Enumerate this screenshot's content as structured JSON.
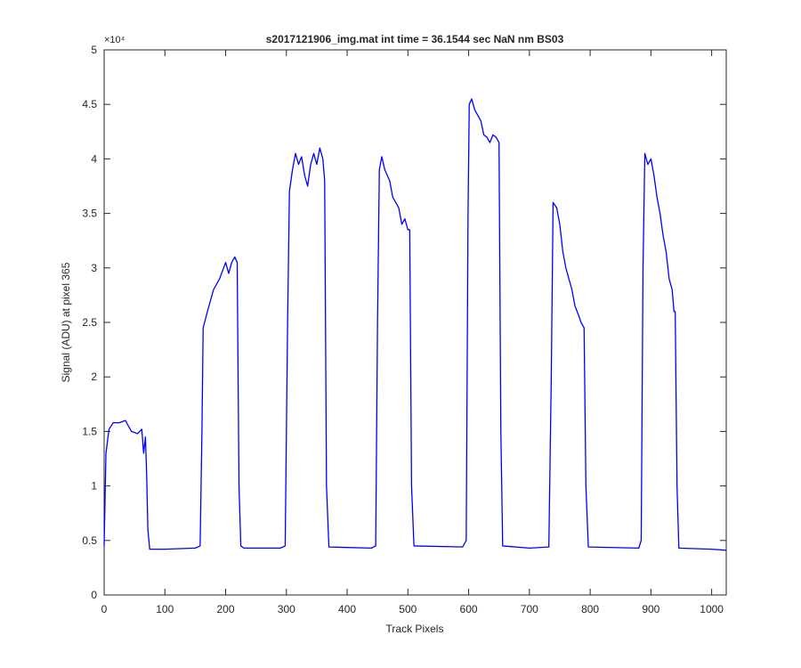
{
  "chart_data": {
    "type": "line",
    "title": "s2017121906_img.mat int time = 36.1544 sec  NaN nm BS03",
    "x_label": "Track Pixels",
    "y_label": "Signal (ADU) at pixel 365",
    "y_exponent_label": "×10⁴",
    "xlim": [
      0,
      1024
    ],
    "xticks": [
      0,
      100,
      200,
      300,
      400,
      500,
      600,
      700,
      800,
      900,
      1000
    ],
    "ylim": [
      0,
      5
    ],
    "yticks": [
      0,
      0.5,
      1,
      1.5,
      2,
      2.5,
      3,
      3.5,
      4,
      4.5,
      5
    ],
    "grid": false,
    "series": [
      {
        "color": "#0000ff",
        "x": [
          0,
          3,
          8,
          15,
          25,
          35,
          45,
          55,
          62,
          65,
          68,
          70,
          72,
          75,
          100,
          150,
          158,
          161,
          163,
          170,
          180,
          190,
          200,
          205,
          210,
          215,
          219,
          222,
          225,
          230,
          290,
          298,
          302,
          305,
          310,
          315,
          320,
          325,
          330,
          335,
          340,
          345,
          350,
          355,
          360,
          363,
          366,
          370,
          440,
          447,
          450,
          453,
          457,
          462,
          470,
          475,
          485,
          490,
          495,
          500,
          503,
          506,
          510,
          590,
          596,
          599,
          601,
          605,
          610,
          620,
          625,
          630,
          635,
          640,
          645,
          650,
          653,
          656,
          700,
          732,
          736,
          739,
          745,
          750,
          755,
          760,
          765,
          770,
          775,
          780,
          785,
          790,
          793,
          797,
          880,
          884,
          887,
          890,
          895,
          900,
          905,
          910,
          915,
          920,
          925,
          930,
          935,
          938,
          940,
          943,
          946,
          1000,
          1024
        ],
        "values": [
          0.45,
          1.3,
          1.52,
          1.58,
          1.58,
          1.6,
          1.5,
          1.48,
          1.52,
          1.3,
          1.45,
          1.1,
          0.6,
          0.42,
          0.42,
          0.43,
          0.45,
          1.5,
          2.45,
          2.6,
          2.8,
          2.9,
          3.05,
          2.95,
          3.05,
          3.1,
          3.05,
          1.0,
          0.45,
          0.43,
          0.43,
          0.45,
          2.5,
          3.7,
          3.9,
          4.05,
          3.95,
          4.02,
          3.85,
          3.75,
          3.95,
          4.05,
          3.95,
          4.1,
          4.0,
          3.8,
          1.0,
          0.44,
          0.43,
          0.45,
          2.5,
          3.9,
          4.02,
          3.9,
          3.8,
          3.65,
          3.55,
          3.4,
          3.45,
          3.35,
          3.35,
          1.0,
          0.45,
          0.44,
          0.5,
          3.5,
          4.5,
          4.55,
          4.45,
          4.35,
          4.22,
          4.2,
          4.15,
          4.22,
          4.2,
          4.15,
          1.5,
          0.45,
          0.43,
          0.44,
          2.0,
          3.6,
          3.55,
          3.4,
          3.15,
          3.0,
          2.9,
          2.8,
          2.65,
          2.58,
          2.5,
          2.45,
          1.0,
          0.44,
          0.43,
          0.5,
          3.0,
          4.05,
          3.95,
          4.0,
          3.85,
          3.65,
          3.5,
          3.3,
          3.15,
          2.9,
          2.8,
          2.6,
          2.6,
          1.0,
          0.43,
          0.42,
          0.41
        ]
      }
    ]
  }
}
